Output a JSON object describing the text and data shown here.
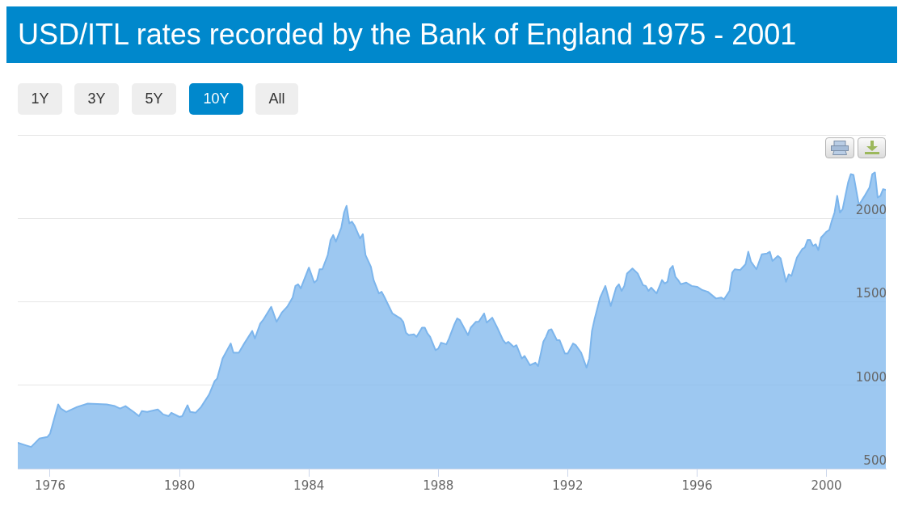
{
  "chart_data": {
    "type": "area",
    "title": "USD/ITL rates recorded by the Bank of England 1975 - 2001",
    "annotations": [
      "1Y",
      "3Y",
      "5Y",
      "10Y",
      "All"
    ],
    "x": [
      "1975-01",
      "1975-04",
      "1975-06",
      "1975-09",
      "1975-12",
      "1976-01",
      "1976-04",
      "1976-05",
      "1976-07",
      "1976-11",
      "1977-03",
      "1977-10",
      "1978-01",
      "1978-03",
      "1978-05",
      "1978-08",
      "1978-10",
      "1978-11",
      "1979-01",
      "1979-05",
      "1979-07",
      "1979-09",
      "1979-10",
      "1980-01",
      "1980-02",
      "1980-04",
      "1980-05",
      "1980-07",
      "1980-09",
      "1980-12",
      "1981-02",
      "1981-03",
      "1981-05",
      "1981-08",
      "1981-09",
      "1981-11",
      "1982-01",
      "1982-04",
      "1982-05",
      "1982-07",
      "1982-08",
      "1982-11",
      "1983-01",
      "1983-03",
      "1983-05",
      "1983-07",
      "1983-08",
      "1983-09",
      "1983-10",
      "1984-01",
      "1984-03",
      "1984-04",
      "1984-05",
      "1984-06",
      "1984-08",
      "1984-09",
      "1984-10",
      "1984-11",
      "1985-01",
      "1985-02",
      "1985-03",
      "1985-04",
      "1985-05",
      "1985-06",
      "1985-08",
      "1985-09",
      "1985-10",
      "1985-12",
      "1986-01",
      "1986-03",
      "1986-04",
      "1986-05",
      "1986-08",
      "1986-10",
      "1986-11",
      "1986-12",
      "1987-01",
      "1987-02",
      "1987-04",
      "1987-05",
      "1987-07",
      "1987-08",
      "1987-09",
      "1987-10",
      "1987-12",
      "1988-01",
      "1988-02",
      "1988-04",
      "1988-05",
      "1988-07",
      "1988-08",
      "1988-09",
      "1988-12",
      "1989-01",
      "1989-03",
      "1989-04",
      "1989-06",
      "1989-07",
      "1989-09",
      "1989-11",
      "1990-01",
      "1990-02",
      "1990-03",
      "1990-05",
      "1990-06",
      "1990-08",
      "1990-09",
      "1990-11",
      "1991-01",
      "1991-02",
      "1991-04",
      "1991-05",
      "1991-06",
      "1991-07",
      "1991-09",
      "1991-10",
      "1991-12",
      "1992-01",
      "1992-03",
      "1992-04",
      "1992-06",
      "1992-08",
      "1992-09",
      "1992-10",
      "1992-11",
      "1993-01",
      "1993-03",
      "1993-05",
      "1993-07",
      "1993-08",
      "1993-09",
      "1993-10",
      "1993-11",
      "1994-01",
      "1994-03",
      "1994-05",
      "1994-06",
      "1994-07",
      "1994-08",
      "1994-10",
      "1994-12",
      "1995-01",
      "1995-02",
      "1995-03",
      "1995-04",
      "1995-05",
      "1995-06",
      "1995-07",
      "1995-09",
      "1995-11",
      "1996-01",
      "1996-03",
      "1996-05",
      "1996-08",
      "1996-10",
      "1996-11",
      "1997-01",
      "1997-02",
      "1997-03",
      "1997-05",
      "1997-07",
      "1997-08",
      "1997-09",
      "1997-11",
      "1998-01",
      "1998-03",
      "1998-04",
      "1998-05",
      "1998-07",
      "1998-08",
      "1998-10",
      "1998-11",
      "1998-12",
      "1999-02",
      "1999-04",
      "1999-05",
      "1999-06",
      "1999-07",
      "1999-08",
      "1999-09",
      "1999-10",
      "1999-11",
      "2000-01",
      "2000-02",
      "2000-03",
      "2000-04",
      "2000-05",
      "2000-06",
      "2000-07",
      "2000-09",
      "2000-10",
      "2000-11",
      "2001-01",
      "2001-03",
      "2001-05",
      "2001-06",
      "2001-07",
      "2001-08",
      "2001-09",
      "2001-10",
      "2001-11"
    ],
    "series": [
      {
        "color": "#7cb5ec",
        "values": [
          655,
          640,
          630,
          680,
          690,
          710,
          885,
          860,
          840,
          870,
          890,
          885,
          875,
          860,
          875,
          840,
          815,
          845,
          840,
          855,
          825,
          815,
          835,
          810,
          815,
          880,
          840,
          835,
          870,
          945,
          1025,
          1040,
          1160,
          1250,
          1195,
          1195,
          1250,
          1325,
          1280,
          1370,
          1390,
          1470,
          1380,
          1435,
          1470,
          1525,
          1595,
          1605,
          1580,
          1705,
          1615,
          1630,
          1695,
          1695,
          1780,
          1870,
          1900,
          1860,
          1945,
          2035,
          2075,
          1970,
          1980,
          1955,
          1880,
          1905,
          1780,
          1710,
          1630,
          1550,
          1560,
          1530,
          1430,
          1410,
          1400,
          1380,
          1315,
          1300,
          1305,
          1290,
          1345,
          1345,
          1310,
          1290,
          1210,
          1220,
          1255,
          1245,
          1280,
          1365,
          1400,
          1390,
          1300,
          1345,
          1380,
          1380,
          1430,
          1375,
          1405,
          1340,
          1270,
          1250,
          1260,
          1230,
          1240,
          1160,
          1175,
          1120,
          1135,
          1115,
          1260,
          1290,
          1330,
          1335,
          1270,
          1270,
          1190,
          1190,
          1250,
          1240,
          1195,
          1105,
          1160,
          1325,
          1400,
          1525,
          1595,
          1475,
          1585,
          1605,
          1565,
          1595,
          1670,
          1700,
          1670,
          1600,
          1595,
          1565,
          1585,
          1550,
          1630,
          1610,
          1620,
          1695,
          1715,
          1650,
          1630,
          1605,
          1615,
          1595,
          1590,
          1570,
          1560,
          1520,
          1525,
          1515,
          1565,
          1675,
          1695,
          1690,
          1725,
          1800,
          1740,
          1695,
          1785,
          1790,
          1800,
          1745,
          1775,
          1760,
          1620,
          1665,
          1655,
          1765,
          1815,
          1825,
          1870,
          1870,
          1835,
          1845,
          1810,
          1885,
          1920,
          1930,
          1985,
          2035,
          2135,
          2035,
          2055,
          2215,
          2265,
          2260,
          2080,
          2130,
          2185,
          2265,
          2275,
          2125,
          2135,
          2175,
          2170
        ]
      }
    ],
    "xlim": [
      "1975-01",
      "2001-11"
    ],
    "xticks": [
      "1976",
      "1980",
      "1984",
      "1988",
      "1992",
      "1996",
      "2000"
    ],
    "ylim": [
      500,
      2500
    ],
    "yticks": [
      500,
      1000,
      1500,
      2000,
      {
        "value": 2500,
        "label": null
      }
    ],
    "grid": "y",
    "marker": "none",
    "line_style": "solid"
  }
}
